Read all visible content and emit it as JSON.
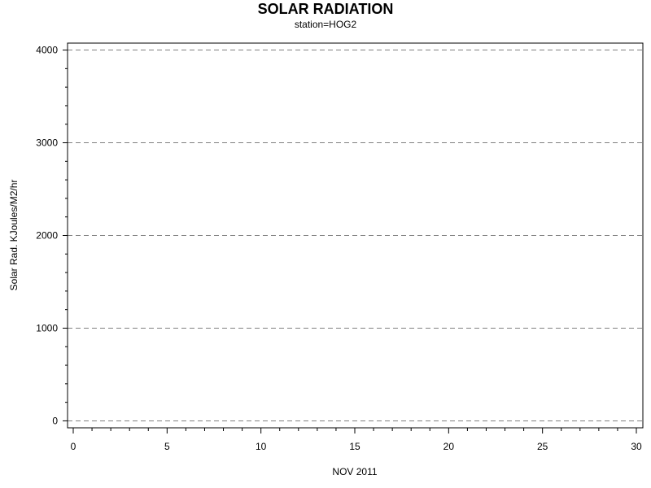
{
  "chart_data": {
    "type": "line",
    "title": "SOLAR RADIATION",
    "subtitle": "station=HOG2",
    "xlabel": "NOV 2011",
    "ylabel": "Solar Rad. KJoules/M2/hr",
    "xlim": [
      0,
      30
    ],
    "ylim": [
      -75,
      4075
    ],
    "x_ticks": [
      0,
      5,
      10,
      15,
      20,
      25,
      30
    ],
    "y_ticks": [
      0,
      1000,
      2000,
      3000,
      4000
    ],
    "grid": "horizontal dashed",
    "series": []
  }
}
